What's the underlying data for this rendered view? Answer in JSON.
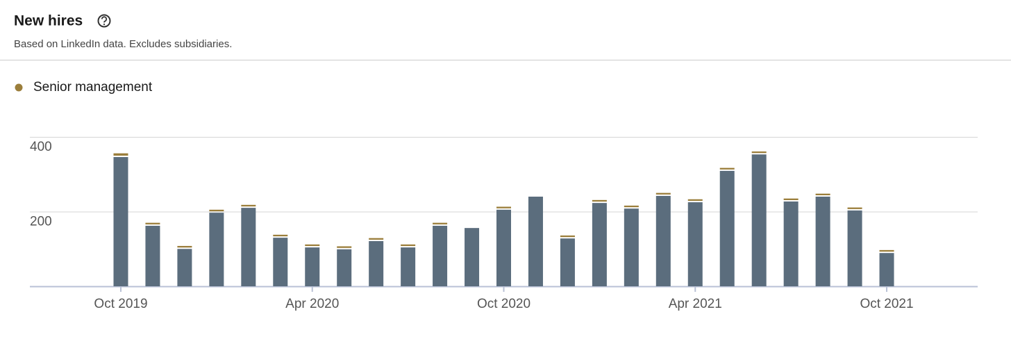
{
  "chart_data": {
    "type": "bar",
    "stacked": true,
    "title": "New hires",
    "subtitle": "Based on LinkedIn data. Excludes subsidiaries.",
    "categories": [
      "Oct 2019",
      null,
      null,
      null,
      null,
      null,
      "Apr 2020",
      null,
      null,
      null,
      null,
      null,
      "Oct 2020",
      null,
      null,
      null,
      null,
      null,
      "Apr 2021",
      null,
      null,
      null,
      null,
      null,
      "Oct 2021"
    ],
    "series": [
      {
        "color": "#5b6d7d",
        "values": [
          346,
          162,
          100,
          197,
          210,
          130,
          104,
          99,
          121,
          104,
          162,
          156,
          205,
          240,
          128,
          223,
          208,
          242,
          225,
          309,
          353,
          227,
          240,
          203,
          89
        ]
      },
      {
        "name": "Senior management",
        "color": "#9b7e3b",
        "values": [
          10,
          8,
          8,
          8,
          8,
          8,
          8,
          8,
          8,
          8,
          8,
          0,
          8,
          0,
          8,
          8,
          8,
          8,
          8,
          8,
          8,
          8,
          8,
          8,
          8
        ]
      }
    ],
    "ylim": [
      0,
      400
    ],
    "yticks": [
      200,
      400
    ],
    "grid": true
  }
}
